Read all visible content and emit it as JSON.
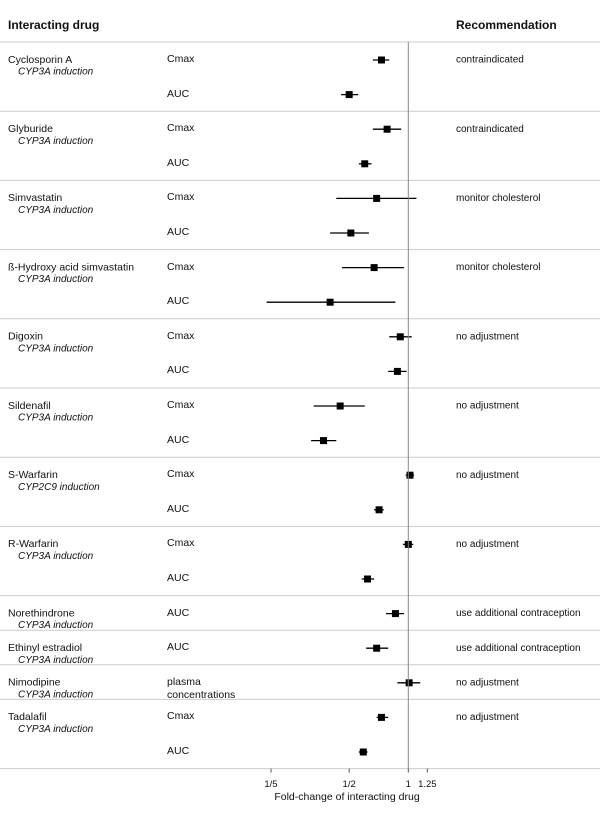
{
  "chart_data": {
    "type": "forest",
    "headers": {
      "drug": "Interacting drug",
      "recommendation": "Recommendation"
    },
    "x_label": "Fold-change of interacting drug",
    "log_x": true,
    "xlim": [
      0.18,
      1.45
    ],
    "xticks": [
      {
        "value": 0.2,
        "label": "1/5"
      },
      {
        "value": 0.5,
        "label": "1/2"
      },
      1,
      1.25
    ],
    "reference_line": 1,
    "color": "#000000",
    "groups": [
      {
        "drug": "Cyclosporin A",
        "mechanism": "CYP3A induction",
        "recommendation": "contraindicated",
        "measures": [
          {
            "label": "Cmax",
            "estimate": 0.73,
            "lower": 0.66,
            "upper": 0.8
          },
          {
            "label": "AUC",
            "estimate": 0.5,
            "lower": 0.455,
            "upper": 0.556
          }
        ]
      },
      {
        "drug": "Glyburide",
        "mechanism": "CYP3A induction",
        "recommendation": "contraindicated",
        "measures": [
          {
            "label": "Cmax",
            "estimate": 0.78,
            "lower": 0.66,
            "upper": 0.92
          },
          {
            "label": "AUC",
            "estimate": 0.6,
            "lower": 0.56,
            "upper": 0.65
          }
        ]
      },
      {
        "drug": "Simvastatin",
        "mechanism": "CYP3A induction",
        "recommendation": "monitor cholesterol",
        "measures": [
          {
            "label": "Cmax",
            "estimate": 0.69,
            "lower": 0.43,
            "upper": 1.1
          },
          {
            "label": "AUC",
            "estimate": 0.51,
            "lower": 0.4,
            "upper": 0.63
          }
        ]
      },
      {
        "drug": "ß-Hydroxy acid simvastatin",
        "mechanism": "CYP3A induction",
        "recommendation": "monitor cholesterol",
        "measures": [
          {
            "label": "Cmax",
            "estimate": 0.67,
            "lower": 0.46,
            "upper": 0.95
          },
          {
            "label": "AUC",
            "estimate": 0.4,
            "lower": 0.19,
            "upper": 0.86
          }
        ]
      },
      {
        "drug": "Digoxin",
        "mechanism": "CYP3A induction",
        "recommendation": "no adjustment",
        "measures": [
          {
            "label": "Cmax",
            "estimate": 0.91,
            "lower": 0.8,
            "upper": 1.04
          },
          {
            "label": "AUC",
            "estimate": 0.88,
            "lower": 0.79,
            "upper": 0.98
          }
        ]
      },
      {
        "drug": "Sildenafil",
        "mechanism": "CYP3A induction",
        "recommendation": "no adjustment",
        "measures": [
          {
            "label": "Cmax",
            "estimate": 0.45,
            "lower": 0.33,
            "upper": 0.6
          },
          {
            "label": "AUC",
            "estimate": 0.37,
            "lower": 0.32,
            "upper": 0.43
          }
        ]
      },
      {
        "drug": "S-Warfarin",
        "mechanism": "CYP2C9 induction",
        "recommendation": "no adjustment",
        "measures": [
          {
            "label": "Cmax",
            "estimate": 1.02,
            "lower": 0.97,
            "upper": 1.07
          },
          {
            "label": "AUC",
            "estimate": 0.71,
            "lower": 0.67,
            "upper": 0.75
          }
        ]
      },
      {
        "drug": "R-Warfarin",
        "mechanism": "CYP3A induction",
        "recommendation": "no adjustment",
        "measures": [
          {
            "label": "Cmax",
            "estimate": 1.0,
            "lower": 0.94,
            "upper": 1.06
          },
          {
            "label": "AUC",
            "estimate": 0.62,
            "lower": 0.58,
            "upper": 0.67
          }
        ]
      },
      {
        "drug": "Norethindrone",
        "mechanism": "CYP3A induction",
        "recommendation": "use additional contraception",
        "measures": [
          {
            "label": "AUC",
            "estimate": 0.86,
            "lower": 0.77,
            "upper": 0.95
          }
        ]
      },
      {
        "drug": "Ethinyl estradiol",
        "mechanism": "CYP3A induction",
        "recommendation": "use additional contraception",
        "measures": [
          {
            "label": "AUC",
            "estimate": 0.69,
            "lower": 0.61,
            "upper": 0.79
          }
        ]
      },
      {
        "drug": "Nimodipine",
        "mechanism": "CYP3A induction",
        "recommendation": "no adjustment",
        "measures": [
          {
            "label": "plasma concentrations",
            "estimate": 1.01,
            "lower": 0.88,
            "upper": 1.15
          }
        ]
      },
      {
        "drug": "Tadalafil",
        "mechanism": "CYP3A induction",
        "recommendation": "no adjustment",
        "measures": [
          {
            "label": "Cmax",
            "estimate": 0.73,
            "lower": 0.69,
            "upper": 0.79
          },
          {
            "label": "AUC",
            "estimate": 0.59,
            "lower": 0.56,
            "upper": 0.62
          }
        ]
      }
    ]
  }
}
